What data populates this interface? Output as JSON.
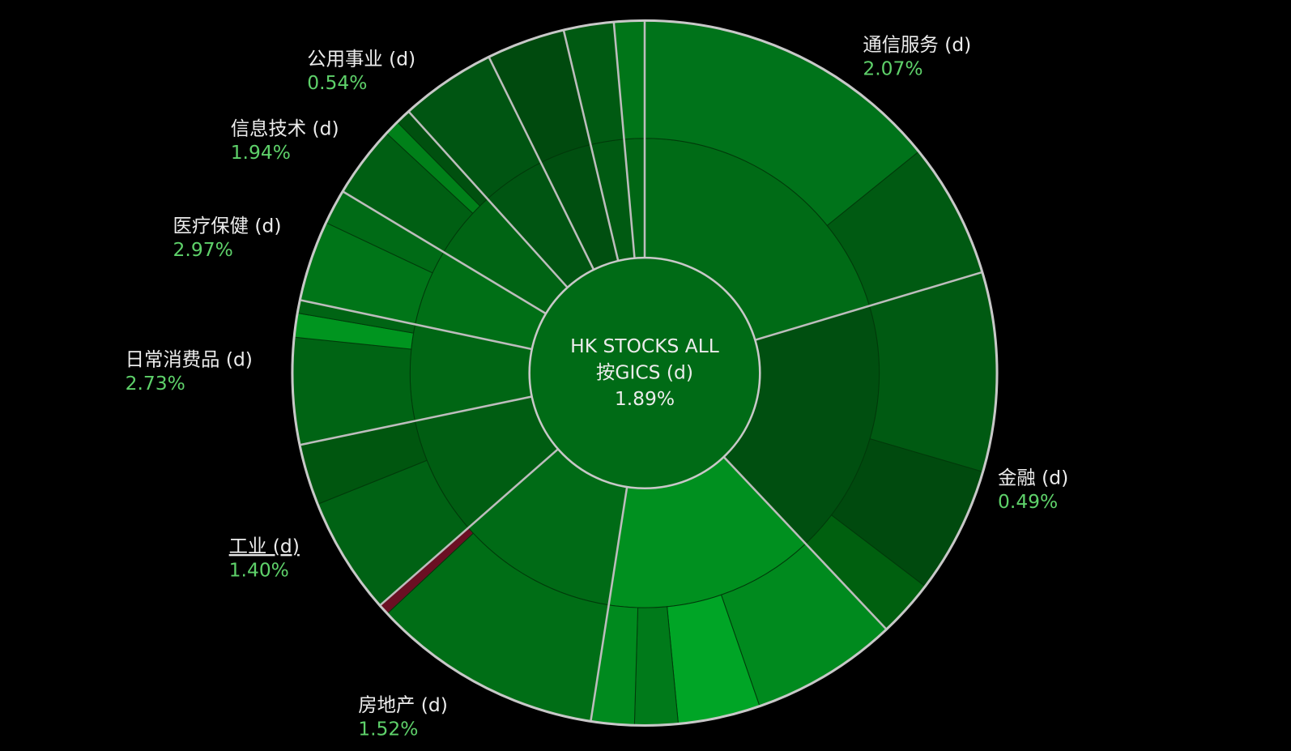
{
  "chart_data": {
    "type": "sunburst",
    "center": {
      "title": "HK STOCKS ALL",
      "subtitle": "按GICS (d)",
      "value": 1.89,
      "value_label": "1.89%",
      "color": "#006b16"
    },
    "sectors": [
      {
        "name": "通信服务 (d)",
        "value": 2.07,
        "value_label": "2.07%",
        "size": 20.4,
        "color": "#006b16",
        "children": [
          {
            "size": 14.2,
            "color": "#00731a"
          },
          {
            "size": 6.2,
            "color": "#005a12"
          }
        ]
      },
      {
        "name": "金融 (d)",
        "value": 0.49,
        "value_label": "0.49%",
        "size": 17.6,
        "color": "#004f10",
        "children": [
          {
            "size": 9.1,
            "color": "#005a12"
          },
          {
            "size": 5.8,
            "color": "#004a0e"
          },
          {
            "size": 2.6,
            "color": "#00600f"
          }
        ]
      },
      {
        "name": null,
        "value": null,
        "value_label": null,
        "size": 14.5,
        "color": "#00901f",
        "children": [
          {
            "size": 6.8,
            "color": "#008a1e"
          },
          {
            "size": 3.8,
            "color": "#00a526"
          },
          {
            "size": 2.0,
            "color": "#007a1a"
          },
          {
            "size": 2.0,
            "color": "#008a1e"
          }
        ]
      },
      {
        "name": "房地产 (d)",
        "value": 1.52,
        "value_label": "1.52%",
        "size": 11.1,
        "color": "#006b16",
        "children": [
          {
            "size": 10.6,
            "color": "#006e16"
          },
          {
            "size": 0.5,
            "color": "#6b0f23"
          }
        ]
      },
      {
        "name": "工业 (d)",
        "value": 1.4,
        "value_label": "1.40%",
        "size": 8.2,
        "color": "#005d12",
        "children": [
          {
            "size": 5.4,
            "color": "#006214"
          },
          {
            "size": 2.8,
            "color": "#00560f"
          }
        ]
      },
      {
        "name": "日常消费品 (d)",
        "value": 2.73,
        "value_label": "2.73%",
        "size": 6.6,
        "color": "#006614",
        "children": [
          {
            "size": 4.9,
            "color": "#006414"
          },
          {
            "size": 1.1,
            "color": "#00951f"
          },
          {
            "size": 0.6,
            "color": "#006414"
          }
        ]
      },
      {
        "name": "医疗保健 (d)",
        "value": 2.97,
        "value_label": "2.97%",
        "size": 5.3,
        "color": "#006f16",
        "children": [
          {
            "size": 3.7,
            "color": "#007518"
          },
          {
            "size": 1.6,
            "color": "#006b16"
          }
        ]
      },
      {
        "name": "信息技术 (d)",
        "value": 1.94,
        "value_label": "1.94%",
        "size": 4.7,
        "color": "#006414",
        "children": [
          {
            "size": 3.3,
            "color": "#005f13"
          },
          {
            "size": 0.7,
            "color": "#008019"
          },
          {
            "size": 0.7,
            "color": "#00500f"
          }
        ]
      },
      {
        "name": "公用事业 (d)",
        "value": 0.54,
        "value_label": "0.54%",
        "size": 4.4,
        "color": "#005512",
        "children": [
          {
            "size": 4.4,
            "color": "#005512"
          }
        ]
      },
      {
        "name": null,
        "value": null,
        "value_label": null,
        "size": 3.6,
        "color": "#004f10",
        "children": [
          {
            "size": 3.6,
            "color": "#004a0e"
          }
        ]
      },
      {
        "name": null,
        "value": null,
        "value_label": null,
        "size": 2.3,
        "color": "#005a12",
        "children": [
          {
            "size": 2.3,
            "color": "#005a12"
          }
        ]
      },
      {
        "name": null,
        "value": null,
        "value_label": null,
        "size": 1.4,
        "color": "#006614",
        "children": [
          {
            "size": 1.4,
            "color": "#007518"
          }
        ]
      }
    ]
  }
}
